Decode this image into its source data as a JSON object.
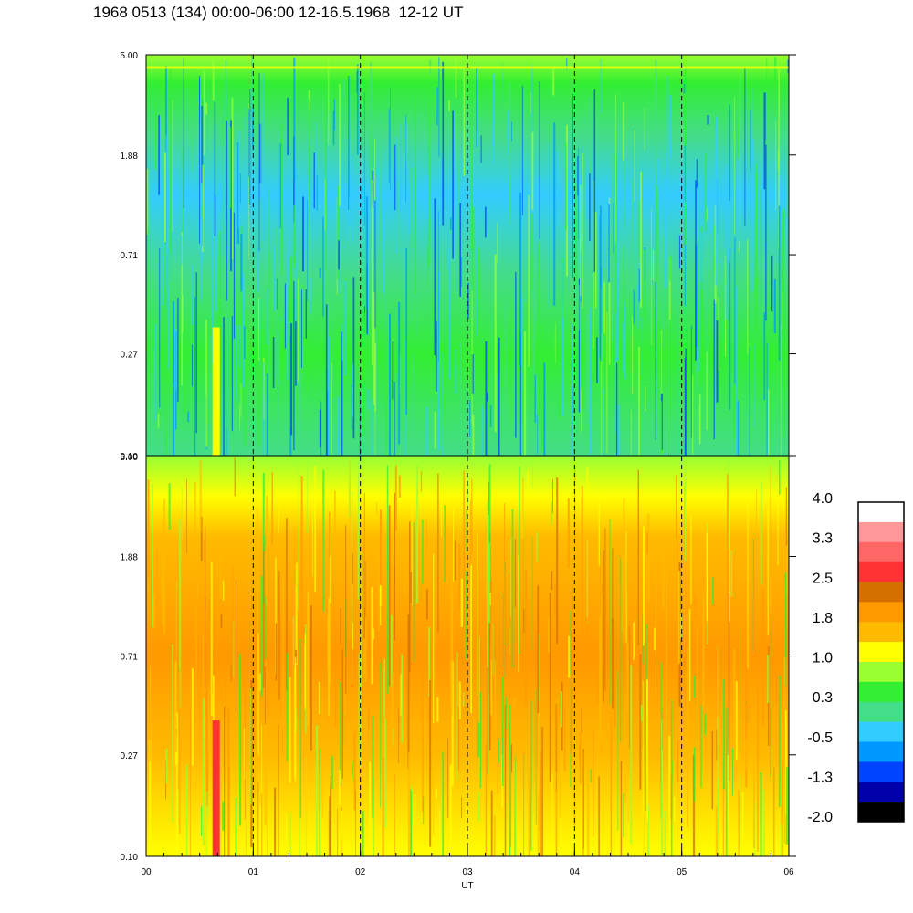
{
  "title": "1968 0513 (134) 00:00-06:00 12-16.5.1968  12-12 UT",
  "chart_data": [
    {
      "type": "heatmap",
      "panel": "upper",
      "title": "",
      "xlabel": "UT",
      "ylabel": "",
      "y_scale": "log",
      "ylim": [
        0.1,
        5.0
      ],
      "yticks": [
        "5.00",
        "1.88",
        "0.71",
        "0.27",
        "0.10"
      ],
      "y_values": [
        5.0,
        1.88,
        0.71,
        0.27,
        0.1
      ],
      "xlim": [
        0,
        6
      ],
      "xticks": [
        "00",
        "01",
        "02",
        "03",
        "04",
        "05",
        "06"
      ],
      "x_values": [
        0,
        1,
        2,
        3,
        4,
        5,
        6
      ],
      "grid": "vertical dashed lines at each hour",
      "dominant_level": "-0.5 to 1.0"
    },
    {
      "type": "heatmap",
      "panel": "lower",
      "title": "",
      "xlabel": "UT",
      "ylabel": "",
      "y_scale": "log",
      "ylim": [
        0.1,
        5.0
      ],
      "yticks": [
        "5.00",
        "1.88",
        "0.71",
        "0.27",
        "0.10"
      ],
      "y_values": [
        5.0,
        1.88,
        0.71,
        0.27,
        0.1
      ],
      "xlim": [
        0,
        6
      ],
      "xticks": [
        "00",
        "01",
        "02",
        "03",
        "04",
        "05",
        "06"
      ],
      "x_values": [
        0,
        1,
        2,
        3,
        4,
        5,
        6
      ],
      "grid": "vertical dashed lines at each hour",
      "dominant_level": "1.0 to 2.5"
    }
  ],
  "colorbar": {
    "labels": [
      "4.0",
      "3.3",
      "2.5",
      "1.8",
      "1.0",
      "0.3",
      "-0.5",
      "-1.3",
      "-2.0"
    ],
    "colors_top_to_bottom": [
      "#ffffff",
      "#ff9999",
      "#ff6666",
      "#ff3333",
      "#d47000",
      "#ff9900",
      "#ffbb00",
      "#ffff00",
      "#99ff33",
      "#33ee33",
      "#44dd88",
      "#33ccff",
      "#0099ff",
      "#0044ff",
      "#0000aa",
      "#000000"
    ]
  }
}
